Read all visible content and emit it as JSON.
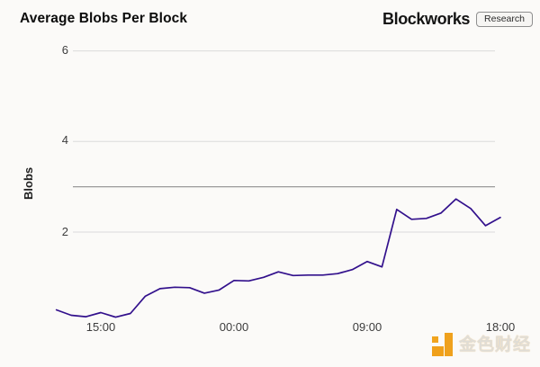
{
  "header": {
    "title": "Average Blobs Per Block",
    "brand": "Blockworks",
    "brand_badge": "Research"
  },
  "watermark": {
    "text": "金色财经"
  },
  "chart_data": {
    "type": "line",
    "title": "Average Blobs Per Block",
    "ylabel": "Blobs",
    "xlabel": "",
    "grid": "horizontal",
    "legend": "none",
    "ylim": [
      0,
      6.3
    ],
    "line_color": "#32108c",
    "grid_color": "#dbdbdb",
    "reference_line": {
      "value": 3,
      "color": "#9a9a9a"
    },
    "y_ticks": [
      {
        "value": 6,
        "label": "6"
      },
      {
        "value": 4,
        "label": "4"
      },
      {
        "value": 2,
        "label": "2"
      }
    ],
    "x_tick_labels": [
      "15:00",
      "00:00",
      "09:00",
      "18:00"
    ],
    "x": [
      "12:00",
      "13:00",
      "14:00",
      "15:00",
      "16:00",
      "17:00",
      "18:00",
      "19:00",
      "20:00",
      "21:00",
      "22:00",
      "23:00",
      "00:00",
      "01:00",
      "02:00",
      "03:00",
      "04:00",
      "05:00",
      "06:00",
      "07:00",
      "08:00",
      "09:00",
      "10:00",
      "11:00",
      "12:00",
      "13:00",
      "14:00",
      "15:00",
      "16:00",
      "17:00",
      "18:00"
    ],
    "series": [
      {
        "name": "Average Blobs Per Block",
        "values": [
          0.28,
          0.16,
          0.13,
          0.22,
          0.12,
          0.2,
          0.58,
          0.75,
          0.78,
          0.77,
          0.65,
          0.72,
          0.93,
          0.92,
          1.0,
          1.12,
          1.04,
          1.05,
          1.05,
          1.08,
          1.17,
          1.35,
          1.23,
          2.5,
          2.28,
          2.3,
          2.42,
          2.73,
          2.52,
          2.14,
          2.32
        ]
      }
    ]
  }
}
